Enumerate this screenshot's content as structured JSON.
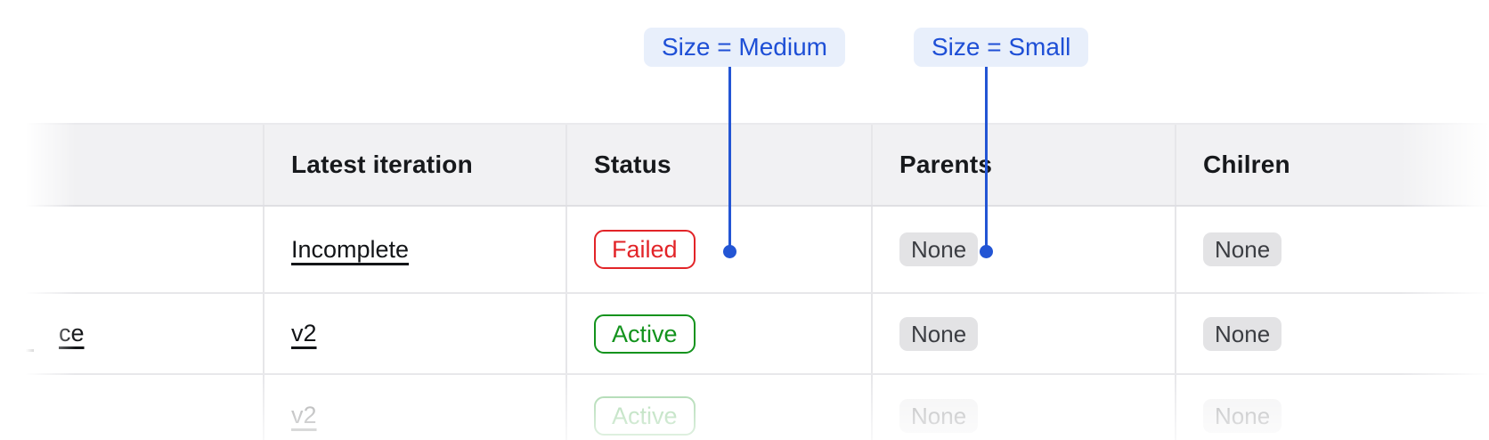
{
  "annotations": {
    "medium": {
      "label": "Size = Medium"
    },
    "small": {
      "label": "Size = Small"
    }
  },
  "table": {
    "columns": [
      {
        "label": ""
      },
      {
        "label": "Latest iteration"
      },
      {
        "label": "Status"
      },
      {
        "label": "Parents"
      },
      {
        "label": "Chilren"
      }
    ],
    "rows": [
      {
        "name": "",
        "latest_iteration": "Incomplete",
        "status": "Failed",
        "status_kind": "failed",
        "parents": "None",
        "children": "None"
      },
      {
        "name": "ce",
        "latest_iteration": "v2",
        "status": "Active",
        "status_kind": "active",
        "parents": "None",
        "children": "None"
      },
      {
        "name": "",
        "latest_iteration": "v2",
        "status": "Active",
        "status_kind": "active",
        "parents": "None",
        "children": "None",
        "faded": true
      }
    ]
  },
  "colors": {
    "annotation_blue": "#2355d4",
    "annotation_text": "#1e4fd6",
    "annotation_bg": "#e8effb",
    "failed_red": "#e22428",
    "active_green": "#13931d",
    "none_badge_bg": "#e3e3e5",
    "header_bg": "#f1f1f3",
    "border_gray": "#e6e6e9"
  }
}
